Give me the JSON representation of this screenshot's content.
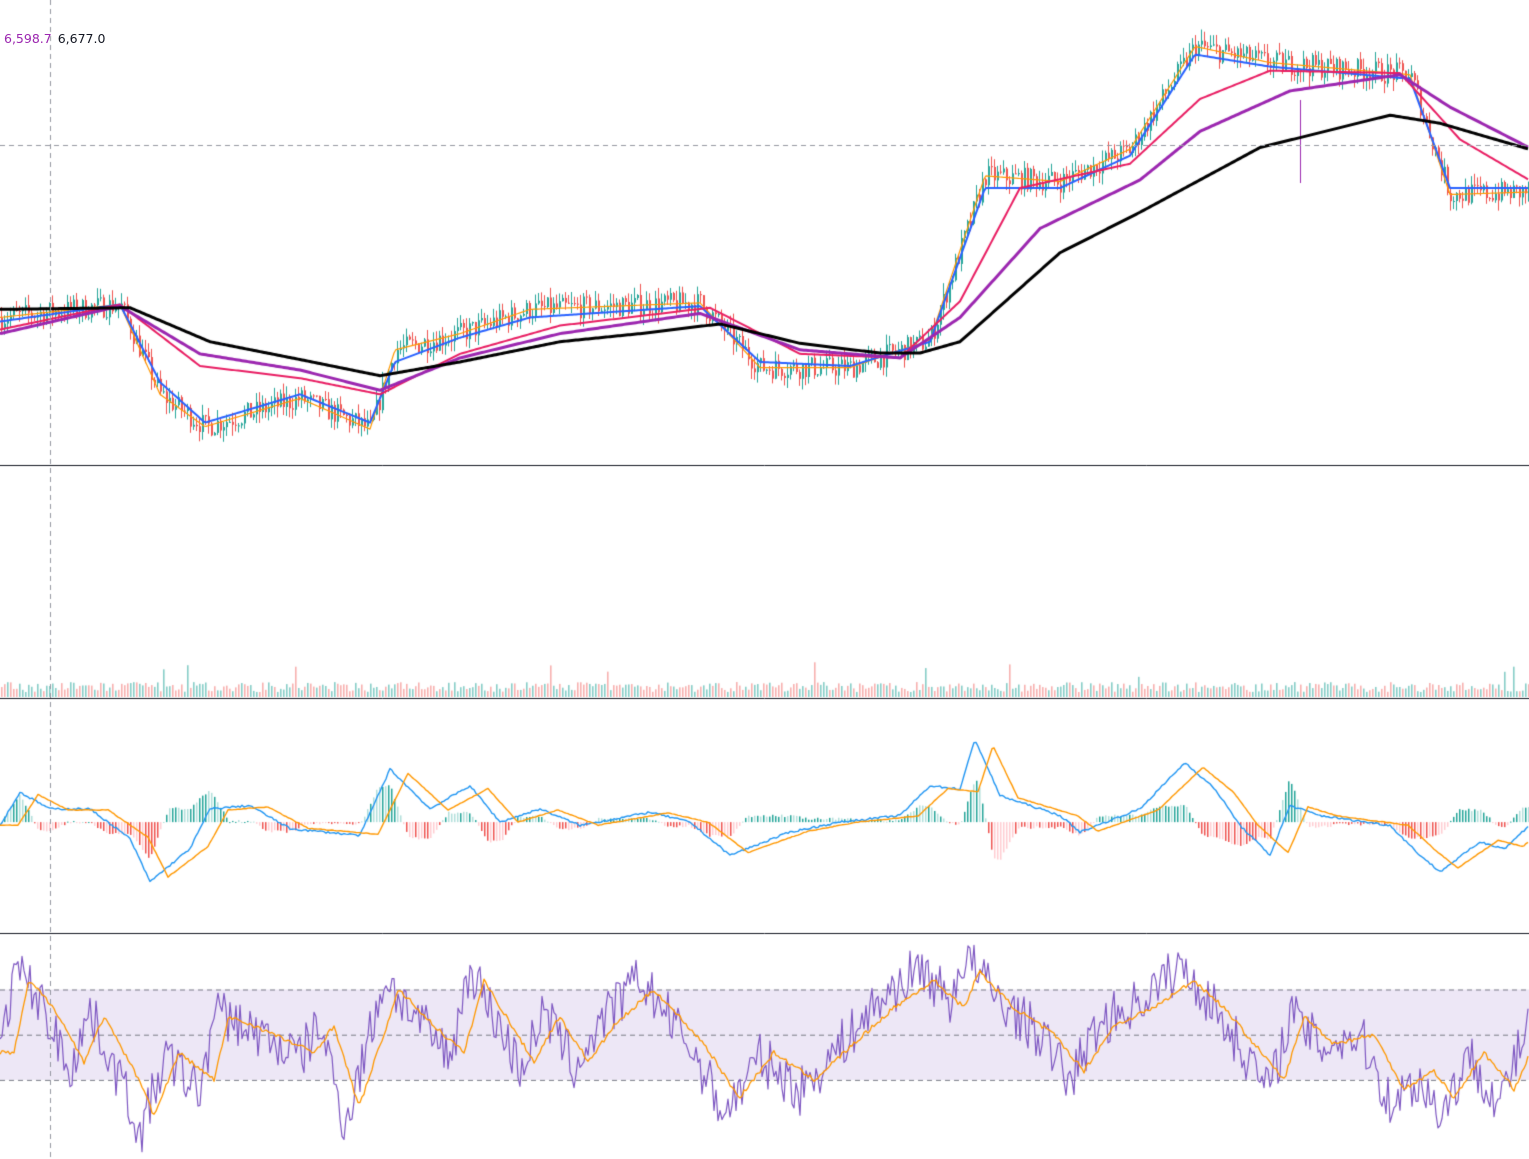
{
  "legend": {
    "value_a": "6,598.7",
    "value_b": "6,677.0",
    "value_a_color": "#9c27b0",
    "value_b_color": "#131722"
  },
  "colors": {
    "up": "#26a69a",
    "down": "#ef5350",
    "ema_fast": "#2962ff",
    "ema_mid": "#e91e63",
    "ema_slow": "#9c27b0",
    "ema_long": "#000000",
    "ema_short": "#ff9800",
    "macd": "#2196f3",
    "signal": "#ff9800",
    "rsi": "#7e57c2",
    "rsi_ma": "#ff9800",
    "rsi_band": "#ede7f6"
  },
  "chart_data": {
    "type": "line",
    "panes": [
      "price",
      "volume",
      "macd",
      "rsi"
    ],
    "price": {
      "ma_long_anchors": [
        [
          0,
          6610
        ],
        [
          130,
          6612
        ],
        [
          210,
          6570
        ],
        [
          300,
          6548
        ],
        [
          380,
          6528
        ],
        [
          460,
          6545
        ],
        [
          560,
          6570
        ],
        [
          640,
          6580
        ],
        [
          720,
          6592
        ],
        [
          800,
          6568
        ],
        [
          880,
          6556
        ],
        [
          920,
          6556
        ],
        [
          960,
          6570
        ],
        [
          1060,
          6680
        ],
        [
          1140,
          6730
        ],
        [
          1260,
          6810
        ],
        [
          1390,
          6850
        ],
        [
          1440,
          6840
        ],
        [
          1529,
          6808
        ]
      ],
      "ma_slow_anchors": [
        [
          0,
          6580
        ],
        [
          120,
          6614
        ],
        [
          200,
          6555
        ],
        [
          300,
          6535
        ],
        [
          380,
          6510
        ],
        [
          460,
          6550
        ],
        [
          560,
          6580
        ],
        [
          700,
          6605
        ],
        [
          800,
          6560
        ],
        [
          900,
          6550
        ],
        [
          960,
          6600
        ],
        [
          1040,
          6710
        ],
        [
          1140,
          6770
        ],
        [
          1200,
          6830
        ],
        [
          1290,
          6880
        ],
        [
          1400,
          6900
        ],
        [
          1450,
          6860
        ],
        [
          1529,
          6810
        ]
      ],
      "ma_mid_anchors": [
        [
          0,
          6585
        ],
        [
          120,
          6616
        ],
        [
          200,
          6540
        ],
        [
          300,
          6525
        ],
        [
          380,
          6505
        ],
        [
          460,
          6555
        ],
        [
          560,
          6590
        ],
        [
          710,
          6612
        ],
        [
          800,
          6555
        ],
        [
          900,
          6550
        ],
        [
          960,
          6620
        ],
        [
          1020,
          6760
        ],
        [
          1130,
          6790
        ],
        [
          1200,
          6870
        ],
        [
          1270,
          6905
        ],
        [
          1400,
          6902
        ],
        [
          1460,
          6820
        ],
        [
          1529,
          6770
        ]
      ],
      "ma_fast_anchors": [
        [
          0,
          6595
        ],
        [
          120,
          6616
        ],
        [
          160,
          6520
        ],
        [
          205,
          6470
        ],
        [
          300,
          6505
        ],
        [
          370,
          6470
        ],
        [
          395,
          6545
        ],
        [
          460,
          6575
        ],
        [
          530,
          6600
        ],
        [
          700,
          6614
        ],
        [
          760,
          6545
        ],
        [
          850,
          6540
        ],
        [
          930,
          6570
        ],
        [
          985,
          6760
        ],
        [
          1060,
          6760
        ],
        [
          1130,
          6800
        ],
        [
          1195,
          6925
        ],
        [
          1270,
          6910
        ],
        [
          1410,
          6895
        ],
        [
          1450,
          6760
        ],
        [
          1529,
          6760
        ]
      ],
      "ma_short_anchors": [
        [
          0,
          6600
        ],
        [
          120,
          6616
        ],
        [
          160,
          6505
        ],
        [
          205,
          6465
        ],
        [
          300,
          6500
        ],
        [
          370,
          6462
        ],
        [
          395,
          6560
        ],
        [
          460,
          6580
        ],
        [
          530,
          6610
        ],
        [
          700,
          6618
        ],
        [
          760,
          6538
        ],
        [
          850,
          6538
        ],
        [
          930,
          6572
        ],
        [
          985,
          6775
        ],
        [
          1060,
          6768
        ],
        [
          1130,
          6808
        ],
        [
          1195,
          6935
        ],
        [
          1270,
          6915
        ],
        [
          1410,
          6900
        ],
        [
          1450,
          6752
        ],
        [
          1529,
          6755
        ]
      ],
      "ylim": [
        6430,
        6980
      ]
    },
    "macd": {
      "macd_anchors": [
        [
          0,
          -5
        ],
        [
          20,
          45
        ],
        [
          50,
          20
        ],
        [
          90,
          20
        ],
        [
          130,
          -25
        ],
        [
          150,
          -90
        ],
        [
          190,
          -40
        ],
        [
          210,
          20
        ],
        [
          250,
          25
        ],
        [
          290,
          -10
        ],
        [
          360,
          -20
        ],
        [
          390,
          80
        ],
        [
          430,
          20
        ],
        [
          470,
          55
        ],
        [
          500,
          0
        ],
        [
          540,
          20
        ],
        [
          580,
          -5
        ],
        [
          650,
          15
        ],
        [
          690,
          0
        ],
        [
          730,
          -50
        ],
        [
          790,
          -15
        ],
        [
          840,
          0
        ],
        [
          900,
          10
        ],
        [
          930,
          55
        ],
        [
          960,
          50
        ],
        [
          975,
          125
        ],
        [
          1000,
          40
        ],
        [
          1060,
          10
        ],
        [
          1080,
          -15
        ],
        [
          1140,
          20
        ],
        [
          1185,
          90
        ],
        [
          1215,
          50
        ],
        [
          1240,
          -5
        ],
        [
          1270,
          -50
        ],
        [
          1290,
          25
        ],
        [
          1320,
          10
        ],
        [
          1390,
          -5
        ],
        [
          1420,
          -50
        ],
        [
          1440,
          -75
        ],
        [
          1480,
          -30
        ],
        [
          1505,
          -40
        ],
        [
          1529,
          -5
        ]
      ],
      "ylim": [
        -160,
        180
      ]
    },
    "rsi": {
      "levels": [
        70,
        50,
        30
      ],
      "rsi_anchors": [
        [
          0,
          40
        ],
        [
          15,
          80
        ],
        [
          40,
          65
        ],
        [
          70,
          35
        ],
        [
          90,
          60
        ],
        [
          130,
          20
        ],
        [
          140,
          5
        ],
        [
          165,
          40
        ],
        [
          200,
          25
        ],
        [
          215,
          60
        ],
        [
          240,
          55
        ],
        [
          300,
          40
        ],
        [
          320,
          55
        ],
        [
          345,
          10
        ],
        [
          385,
          75
        ],
        [
          420,
          55
        ],
        [
          450,
          40
        ],
        [
          470,
          80
        ],
        [
          520,
          35
        ],
        [
          545,
          60
        ],
        [
          575,
          35
        ],
        [
          600,
          55
        ],
        [
          640,
          75
        ],
        [
          690,
          45
        ],
        [
          725,
          15
        ],
        [
          760,
          40
        ],
        [
          800,
          25
        ],
        [
          850,
          50
        ],
        [
          880,
          65
        ],
        [
          920,
          80
        ],
        [
          950,
          65
        ],
        [
          965,
          85
        ],
        [
          1000,
          65
        ],
        [
          1040,
          50
        ],
        [
          1070,
          30
        ],
        [
          1100,
          55
        ],
        [
          1140,
          65
        ],
        [
          1180,
          80
        ],
        [
          1210,
          65
        ],
        [
          1240,
          45
        ],
        [
          1270,
          25
        ],
        [
          1290,
          60
        ],
        [
          1320,
          45
        ],
        [
          1360,
          50
        ],
        [
          1390,
          20
        ],
        [
          1420,
          30
        ],
        [
          1440,
          15
        ],
        [
          1470,
          40
        ],
        [
          1500,
          20
        ],
        [
          1529,
          55
        ]
      ],
      "ylim": [
        -5,
        95
      ]
    }
  }
}
